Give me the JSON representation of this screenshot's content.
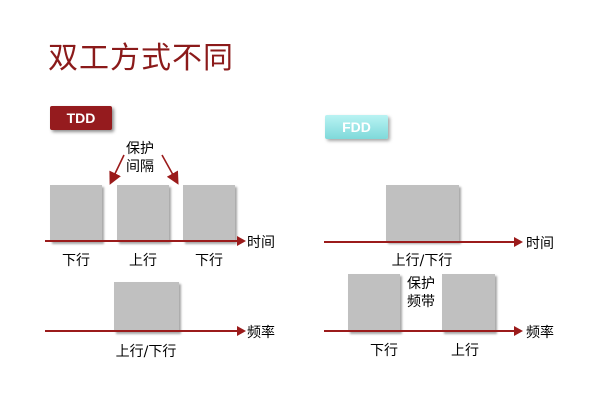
{
  "title": "双工方式不同",
  "tdd": {
    "tag": "TDD",
    "guard_line1": "保护",
    "guard_line2": "间隔",
    "time_slots": [
      "下行",
      "上行",
      "下行"
    ],
    "time_axis": "时间",
    "freq_label": "上行/下行",
    "freq_axis": "频率"
  },
  "fdd": {
    "tag": "FDD",
    "time_label": "上行/下行",
    "time_axis": "时间",
    "guard_line1": "保护",
    "guard_line2": "频带",
    "freq_bands": [
      "下行",
      "上行"
    ],
    "freq_axis": "频率"
  },
  "colors": {
    "title": "#8b1a1a",
    "axis": "#9b1b1b",
    "block": "#c0c0c0",
    "tdd_tag": "#951b1e",
    "fdd_tag": "#9ee6e7"
  }
}
